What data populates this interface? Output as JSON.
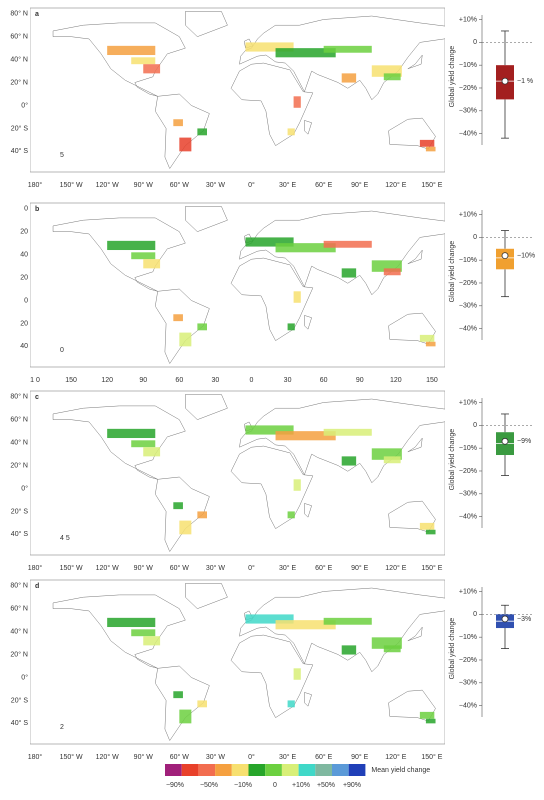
{
  "figure": {
    "legend": {
      "title": "Mean yield change",
      "colors": [
        "#a0207a",
        "#e8402a",
        "#f26d4f",
        "#f5a040",
        "#f7e070",
        "#27a52a",
        "#6cd040",
        "#d8ef78",
        "#40d8c8",
        "#7fb8a0",
        "#5b9ad8",
        "#2040b8"
      ],
      "labels": [
        "−90%",
        "−50%",
        "−10%",
        "0",
        "+10%",
        "+50%",
        "+90%"
      ]
    },
    "boxplot_axis": {
      "ylabel": "Global yield change",
      "ylim": [
        -45,
        12
      ],
      "yticks": [
        {
          "value": 10,
          "label": "+10%"
        },
        0,
        {
          "value": -10,
          "label": "−10%"
        },
        {
          "value": -20,
          "label": "−20%"
        },
        {
          "value": -30,
          "label": "−30%"
        },
        {
          "value": -40,
          "label": "−40%"
        }
      ]
    },
    "panels": [
      {
        "letter": "a",
        "corner_label": "5",
        "corner_color": "#c0392b",
        "lat_labels": [
          "80° N",
          "60° N",
          "40° N",
          "20° N",
          "0°",
          "20° S",
          "40° S"
        ],
        "lon_labels": [
          "180°",
          "150° W",
          "120° W",
          "90° W",
          "60° W",
          "30° W",
          "0°",
          "30° E",
          "60° E",
          "90° E",
          "120° E",
          "150° E"
        ],
        "box": {
          "color": "#a31f1f",
          "whisker_high": 5,
          "q3": -10,
          "median": -17,
          "q1": -25,
          "whisker_low": -42,
          "mean": -17,
          "label": "−1 %"
        }
      },
      {
        "letter": "b",
        "corner_label": "0",
        "corner_color": "#f0a030",
        "lat_labels": [
          "0",
          "20",
          "40",
          "20",
          "0",
          "20",
          "40"
        ],
        "lon_labels": [
          "1 0",
          "150",
          "120",
          "90",
          "60",
          "30",
          "0",
          "30",
          "60",
          "90",
          "120",
          "150"
        ],
        "box": {
          "color": "#f0a030",
          "whisker_high": 3,
          "q3": -5,
          "median": -9,
          "q1": -14,
          "whisker_low": -26,
          "mean": -8,
          "label": "−10%"
        }
      },
      {
        "letter": "c",
        "corner_label": "4 5",
        "corner_color": "#3aa040",
        "lat_labels": [
          "80° N",
          "60° N",
          "40° N",
          "20° N",
          "0°",
          "20° S",
          "40° S"
        ],
        "lon_labels": [
          "180°",
          "150° W",
          "120° W",
          "90° W",
          "60° W",
          "30° W",
          "0°",
          "30° E",
          "60° E",
          "90° E",
          "120° E",
          "150° E"
        ],
        "box": {
          "color": "#3a9a40",
          "whisker_high": 5,
          "q3": -3,
          "median": -8,
          "q1": -13,
          "whisker_low": -22,
          "mean": -7,
          "label": "−9%"
        }
      },
      {
        "letter": "d",
        "corner_label": "2",
        "corner_color": "#3050b0",
        "lat_labels": [
          "80° N",
          "60° N",
          "40° N",
          "20° N",
          "0°",
          "20° S",
          "40° S"
        ],
        "lon_labels": [
          "180°",
          "150° W",
          "120° W",
          "90° W",
          "60° W",
          "30° W",
          "0°",
          "30° E",
          "60° E",
          "90° E",
          "120° E",
          "150° E"
        ],
        "box": {
          "color": "#3050b0",
          "whisker_high": 4,
          "q3": 0,
          "median": -3,
          "q1": -6,
          "whisker_low": -15,
          "mean": -2,
          "label": "−3%"
        }
      }
    ]
  }
}
